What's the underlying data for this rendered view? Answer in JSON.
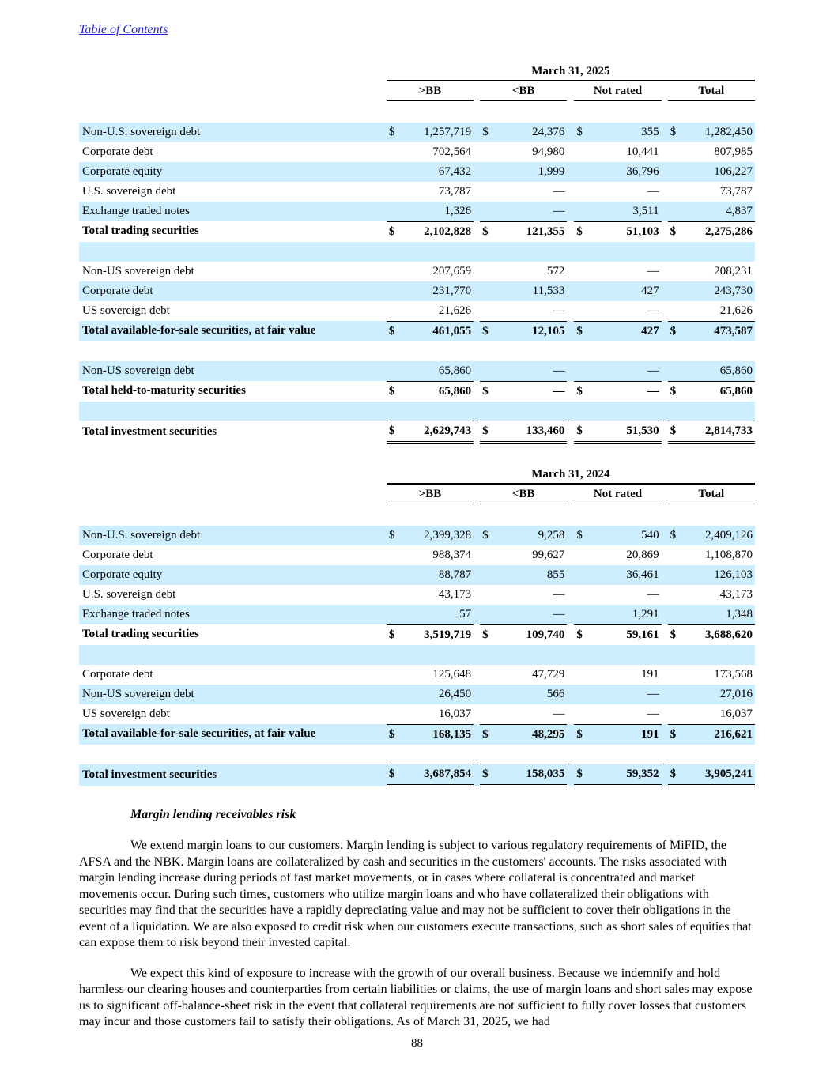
{
  "page": {
    "toc_link": "Table of Contents",
    "page_number": "88"
  },
  "colors": {
    "row_shade": "#cceeff",
    "link": "#2323cc",
    "rule": "#000000"
  },
  "tables": [
    {
      "period": "March 31, 2025",
      "columns": [
        ">BB",
        "<BB",
        "Not rated",
        "Total"
      ],
      "rows": [
        {
          "label": "Non-U.S. sovereign debt",
          "d": true,
          "v": [
            "1,257,719",
            "24,376",
            "355",
            "1,282,450"
          ],
          "shade": true
        },
        {
          "label": "Corporate debt",
          "d": false,
          "v": [
            "702,564",
            "94,980",
            "10,441",
            "807,985"
          ]
        },
        {
          "label": "Corporate equity",
          "d": false,
          "v": [
            "67,432",
            "1,999",
            "36,796",
            "106,227"
          ],
          "shade": true
        },
        {
          "label": "U.S. sovereign debt",
          "d": false,
          "v": [
            "73,787",
            "—",
            "—",
            "73,787"
          ]
        },
        {
          "label": "Exchange traded notes",
          "d": false,
          "v": [
            "1,326",
            "—",
            "3,511",
            "4,837"
          ],
          "shade": true
        },
        {
          "label": "Total trading securities",
          "d": true,
          "v": [
            "2,102,828",
            "121,355",
            "51,103",
            "2,275,286"
          ],
          "bold": true,
          "rule": true
        },
        {
          "blank": true,
          "shade": true
        },
        {
          "label": "Non-US sovereign debt",
          "d": false,
          "v": [
            "207,659",
            "572",
            "—",
            "208,231"
          ]
        },
        {
          "label": "Corporate debt",
          "d": false,
          "v": [
            "231,770",
            "11,533",
            "427",
            "243,730"
          ],
          "shade": true
        },
        {
          "label": "US sovereign debt",
          "d": false,
          "v": [
            "21,626",
            "—",
            "—",
            "21,626"
          ]
        },
        {
          "label": "Total available-for-sale securities, at fair value",
          "d": true,
          "v": [
            "461,055",
            "12,105",
            "427",
            "473,587"
          ],
          "bold": true,
          "rule": true,
          "shade": true
        },
        {
          "blank": true
        },
        {
          "label": "Non-US sovereign debt",
          "d": false,
          "v": [
            "65,860",
            "—",
            "—",
            "65,860"
          ],
          "shade": true
        },
        {
          "label": "Total held-to-maturity securities",
          "d": true,
          "v": [
            "65,860",
            "—",
            "—",
            "65,860"
          ],
          "bold": true,
          "rule": true
        },
        {
          "blank": true,
          "shade": true
        },
        {
          "label": "Total investment securities",
          "d": true,
          "v": [
            "2,629,743",
            "133,460",
            "51,530",
            "2,814,733"
          ],
          "bold": true,
          "rule": true,
          "dbl": true
        }
      ]
    },
    {
      "period": "March 31, 2024",
      "columns": [
        ">BB",
        "<BB",
        "Not rated",
        "Total"
      ],
      "rows": [
        {
          "label": "Non-U.S. sovereign debt",
          "d": true,
          "v": [
            "2,399,328",
            "9,258",
            "540",
            "2,409,126"
          ],
          "shade": true
        },
        {
          "label": "Corporate debt",
          "d": false,
          "v": [
            "988,374",
            "99,627",
            "20,869",
            "1,108,870"
          ]
        },
        {
          "label": "Corporate equity",
          "d": false,
          "v": [
            "88,787",
            "855",
            "36,461",
            "126,103"
          ],
          "shade": true
        },
        {
          "label": "U.S. sovereign debt",
          "d": false,
          "v": [
            "43,173",
            "—",
            "—",
            "43,173"
          ]
        },
        {
          "label": "Exchange traded notes",
          "d": false,
          "v": [
            "57",
            "—",
            "1,291",
            "1,348"
          ],
          "shade": true
        },
        {
          "label": "Total trading securities",
          "d": true,
          "v": [
            "3,519,719",
            "109,740",
            "59,161",
            "3,688,620"
          ],
          "bold": true,
          "rule": true
        },
        {
          "blank": true,
          "shade": true
        },
        {
          "label": "Corporate debt",
          "d": false,
          "v": [
            "125,648",
            "47,729",
            "191",
            "173,568"
          ]
        },
        {
          "label": "Non-US sovereign debt",
          "d": false,
          "v": [
            "26,450",
            "566",
            "—",
            "27,016"
          ],
          "shade": true
        },
        {
          "label": "US sovereign debt",
          "d": false,
          "v": [
            "16,037",
            "—",
            "—",
            "16,037"
          ]
        },
        {
          "label": "Total available-for-sale securities, at fair value",
          "d": true,
          "v": [
            "168,135",
            "48,295",
            "191",
            "216,621"
          ],
          "bold": true,
          "rule": true,
          "shade": true
        },
        {
          "blank": true
        },
        {
          "label": "Total investment securities",
          "d": true,
          "v": [
            "3,687,854",
            "158,035",
            "59,352",
            "3,905,241"
          ],
          "bold": true,
          "rule": true,
          "dbl": true,
          "shade": true
        }
      ]
    }
  ],
  "section": {
    "heading": "Margin lending receivables risk",
    "paragraphs": [
      "We extend margin loans to our customers. Margin lending is subject to various regulatory requirements of MiFID, the AFSA and the NBK. Margin loans are collateralized by cash and securities in the customers' accounts. The risks associated with margin lending increase during periods of fast market movements, or in cases where collateral is concentrated and market movements occur. During such times, customers who utilize margin loans and who have collateralized their obligations with securities may find that the securities have a rapidly depreciating value and may not be sufficient to cover their obligations in the event of a liquidation. We are also exposed to credit risk when our customers execute transactions, such as short sales of equities that can expose them to risk beyond their invested capital.",
      "We expect this kind of exposure to increase with the growth of our overall business. Because we indemnify and hold harmless our clearing houses and counterparties from certain liabilities or claims, the use of margin loans and short sales may expose us to significant off-balance-sheet risk in the event that collateral requirements are not sufficient to fully cover losses that customers may incur and those customers fail to satisfy their obligations. As of March 31, 2025, we had"
    ]
  }
}
